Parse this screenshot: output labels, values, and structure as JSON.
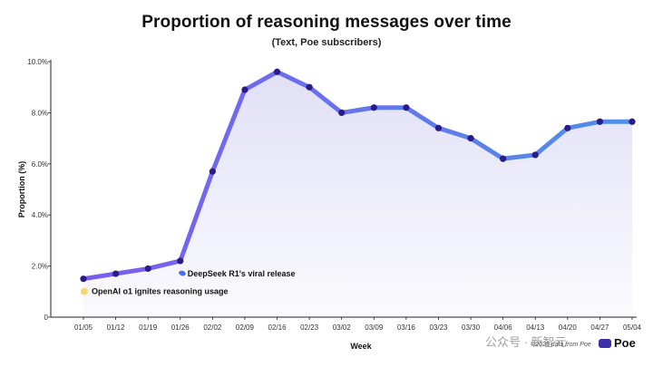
{
  "title": "Proportion of reasoning messages over time",
  "subtitle": "(Text, Poe subscribers)",
  "chart_data": {
    "type": "line",
    "title": "Proportion of reasoning messages over time",
    "subtitle": "(Text, Poe subscribers)",
    "xlabel": "Week",
    "ylabel": "Proportion (%)",
    "categories": [
      "01/05",
      "01/12",
      "01/19",
      "01/26",
      "02/02",
      "02/09",
      "02/16",
      "02/23",
      "03/02",
      "03/09",
      "03/16",
      "03/23",
      "03/30",
      "04/06",
      "04/13",
      "04/20",
      "04/27",
      "05/04"
    ],
    "series": [
      {
        "values": [
          1.5,
          1.7,
          1.9,
          2.2,
          5.7,
          8.9,
          9.6,
          9.0,
          8.0,
          8.2,
          8.2,
          7.4,
          7.0,
          6.2,
          6.35,
          7.4,
          7.65,
          7.65
        ]
      }
    ],
    "ylim": [
      0,
      10
    ],
    "yticks": [
      0,
      2,
      4,
      6,
      8,
      10
    ],
    "ytick_labels": [
      "0",
      "2.0%",
      "4.0%",
      "6.0%",
      "8.0%",
      "10.0%"
    ],
    "grid": false,
    "line_gradient": [
      "#7b5cf0",
      "#4f8fe8"
    ],
    "point_color": "#2a1a8a",
    "fill_color": "#c9c6ee",
    "annotations": [
      {
        "text": "OpenAI o1 ignites reasoning usage",
        "category": "01/05",
        "icon": "lightbulb-icon",
        "icon_color": "#f5d76e"
      },
      {
        "text": "DeepSeek R1's viral release",
        "category": "01/26",
        "icon": "whale-icon",
        "icon_color": "#4a6cf0"
      }
    ]
  },
  "footer": {
    "source": "©2025 data from Poe",
    "brand": "Poe",
    "watermark": "公众号 · 新智元"
  }
}
